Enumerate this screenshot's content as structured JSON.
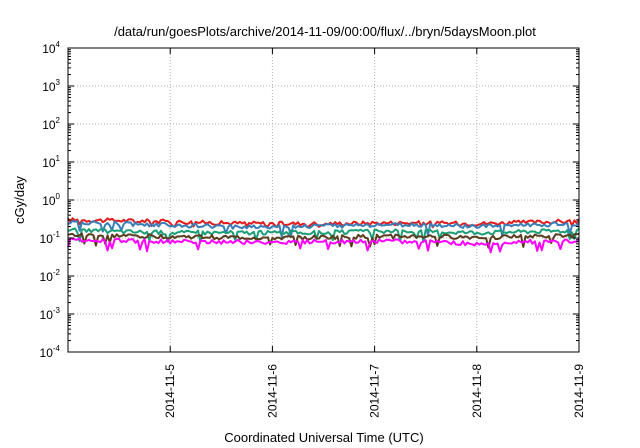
{
  "chart_data": {
    "type": "line",
    "title": "/data/run/goesPlots/archive/2014-11-09/00:00/flux/../bryn/5daysMoon.plot",
    "xlabel": "Coordinated Universal Time (UTC)",
    "ylabel": "cGy/day",
    "y_scale": "log",
    "ylim": [
      0.0001,
      10000
    ],
    "y_ticks": [
      {
        "base": "10",
        "exp": "-4",
        "value": 0.0001
      },
      {
        "base": "10",
        "exp": "-3",
        "value": 0.001
      },
      {
        "base": "10",
        "exp": "-2",
        "value": 0.01
      },
      {
        "base": "10",
        "exp": "-1",
        "value": 0.1
      },
      {
        "base": "10",
        "exp": "0",
        "value": 1
      },
      {
        "base": "10",
        "exp": "1",
        "value": 10
      },
      {
        "base": "10",
        "exp": "2",
        "value": 100
      },
      {
        "base": "10",
        "exp": "3",
        "value": 1000
      },
      {
        "base": "10",
        "exp": "4",
        "value": 10000
      }
    ],
    "xlim": [
      "2014-11-04 00:00",
      "2014-11-09 00:00"
    ],
    "x_ticks": [
      "2014-11-5",
      "2014-11-6",
      "2014-11-7",
      "2014-11-8",
      "2014-11-9"
    ],
    "grid": true,
    "legend": "none",
    "x": [
      "2014-11-04 00:00",
      "2014-11-04 12:00",
      "2014-11-05 00:00",
      "2014-11-05 12:00",
      "2014-11-06 00:00",
      "2014-11-06 12:00",
      "2014-11-07 00:00",
      "2014-11-07 12:00",
      "2014-11-08 00:00",
      "2014-11-08 12:00",
      "2014-11-09 00:00"
    ],
    "series": [
      {
        "color": "#e41a1c",
        "values": [
          0.3,
          0.29,
          0.27,
          0.25,
          0.24,
          0.24,
          0.25,
          0.25,
          0.24,
          0.26,
          0.28
        ]
      },
      {
        "color": "#377eb8",
        "values": [
          0.26,
          0.24,
          0.22,
          0.2,
          0.2,
          0.21,
          0.22,
          0.22,
          0.2,
          0.22,
          0.24
        ]
      },
      {
        "color": "#1b9e77",
        "values": [
          0.16,
          0.15,
          0.14,
          0.14,
          0.14,
          0.14,
          0.15,
          0.15,
          0.14,
          0.15,
          0.16
        ]
      },
      {
        "color": "#5a3d1e",
        "values": [
          0.12,
          0.115,
          0.11,
          0.105,
          0.1,
          0.105,
          0.11,
          0.11,
          0.105,
          0.11,
          0.115
        ]
      },
      {
        "color": "#ff00ff",
        "values": [
          0.09,
          0.085,
          0.082,
          0.08,
          0.078,
          0.08,
          0.082,
          0.082,
          0.07,
          0.08,
          0.085
        ]
      }
    ]
  }
}
